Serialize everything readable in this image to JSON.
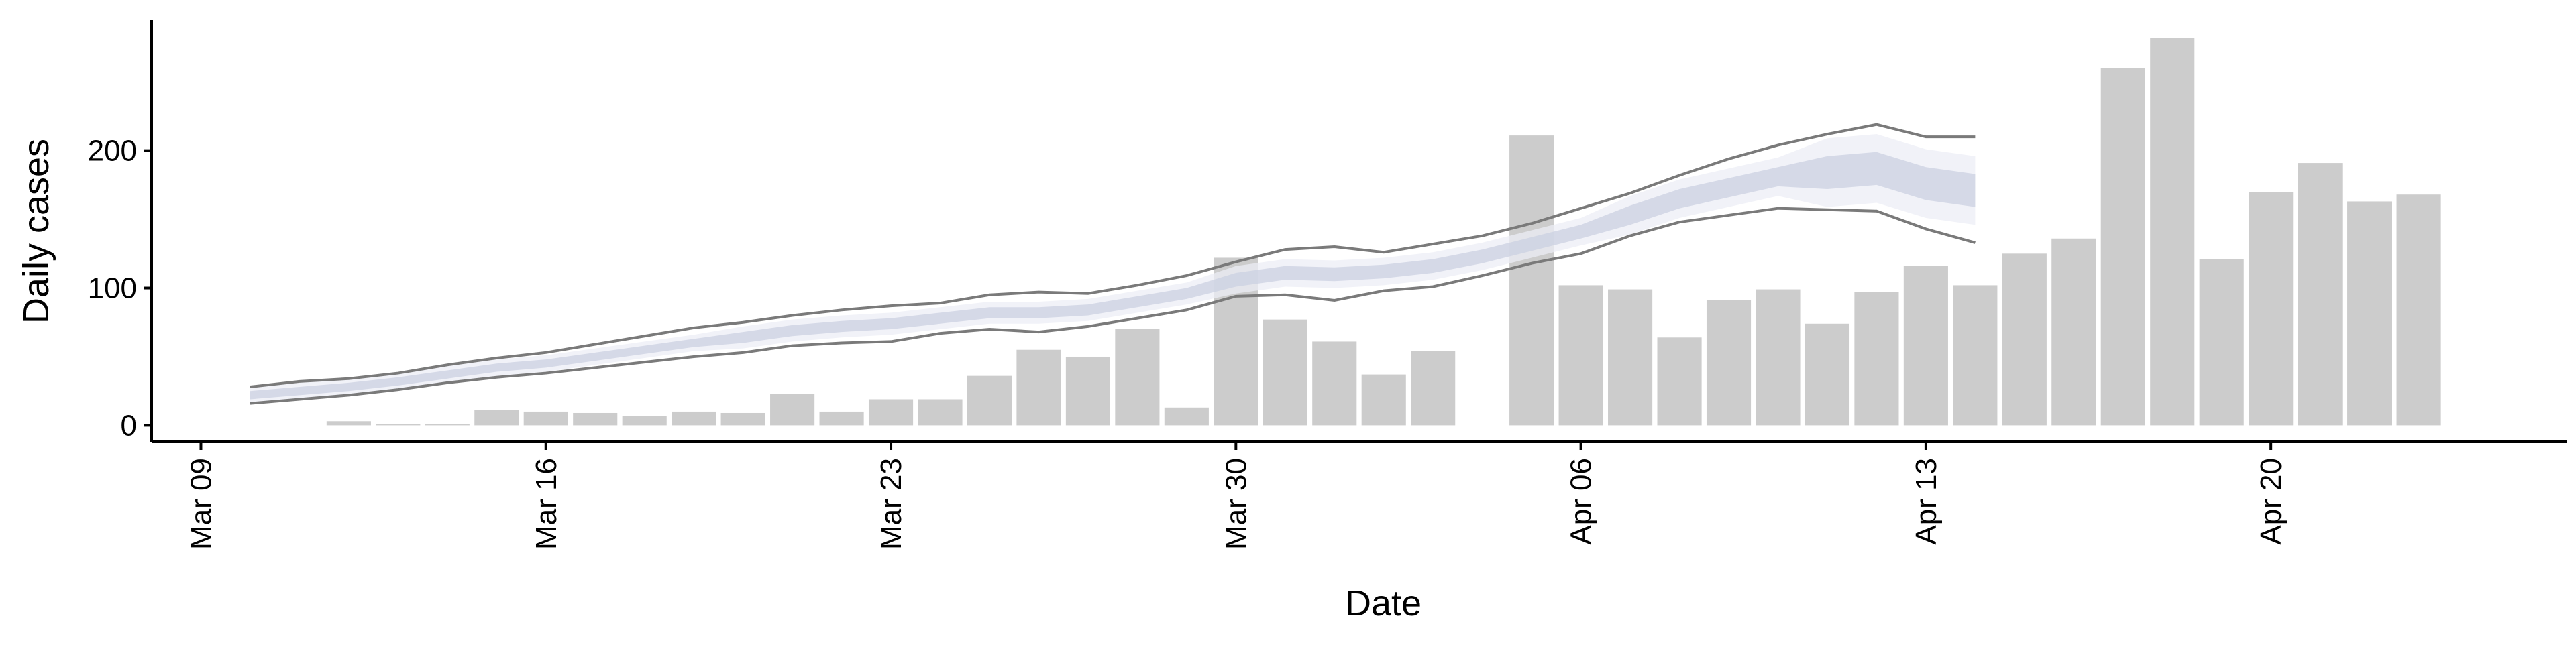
{
  "chart_data": {
    "type": "combo",
    "x_label": "Date",
    "y_label": "Daily cases",
    "x": [
      "Mar 10",
      "Mar 11",
      "Mar 12",
      "Mar 13",
      "Mar 14",
      "Mar 15",
      "Mar 16",
      "Mar 17",
      "Mar 18",
      "Mar 19",
      "Mar 20",
      "Mar 21",
      "Mar 22",
      "Mar 23",
      "Mar 24",
      "Mar 25",
      "Mar 26",
      "Mar 27",
      "Mar 28",
      "Mar 29",
      "Mar 30",
      "Mar 31",
      "Apr 01",
      "Apr 02",
      "Apr 03",
      "Apr 04",
      "Apr 05",
      "Apr 06",
      "Apr 07",
      "Apr 08",
      "Apr 09",
      "Apr 10",
      "Apr 11",
      "Apr 12",
      "Apr 13",
      "Apr 14",
      "Apr 15",
      "Apr 16",
      "Apr 17",
      "Apr 18",
      "Apr 19",
      "Apr 20",
      "Apr 21",
      "Apr 22",
      "Apr 23"
    ],
    "xlim": [
      "Mar 08",
      "Apr 26"
    ],
    "xticks": [
      "Mar 09",
      "Mar 16",
      "Mar 23",
      "Mar 30",
      "Apr 06",
      "Apr 13",
      "Apr 20"
    ],
    "ylim": [
      -12,
      295
    ],
    "yticks": [
      0,
      100,
      200
    ],
    "series": [
      {
        "type": "bar",
        "color": "#cccccc",
        "values": [
          null,
          null,
          3,
          1,
          1,
          11,
          10,
          9,
          7,
          10,
          9,
          23,
          10,
          19,
          19,
          36,
          55,
          50,
          70,
          13,
          122,
          77,
          61,
          37,
          54,
          null,
          211,
          102,
          99,
          64,
          91,
          99,
          74,
          97,
          116,
          102,
          125,
          136,
          260,
          282,
          121,
          170,
          191,
          163,
          168
        ]
      },
      {
        "type": "band",
        "color": "#eceef5",
        "lo": [
          16,
          19,
          22,
          26,
          31,
          36,
          39,
          44,
          49,
          54,
          56,
          61,
          64,
          66,
          70,
          74,
          74,
          76,
          82,
          88,
          96,
          101,
          100,
          102,
          106,
          113,
          122,
          131,
          139,
          151,
          159,
          167,
          159,
          162,
          151,
          146,
          null,
          null,
          null,
          null,
          null,
          null,
          null,
          null,
          null
        ],
        "hi": [
          28,
          31,
          34,
          38,
          43,
          48,
          51,
          56,
          61,
          66,
          72,
          77,
          80,
          82,
          86,
          90,
          90,
          92,
          98,
          104,
          116,
          121,
          120,
          122,
          126,
          133,
          142,
          151,
          167,
          179,
          187,
          195,
          209,
          212,
          201,
          196,
          null,
          null,
          null,
          null,
          null,
          null,
          null,
          null,
          null
        ]
      },
      {
        "type": "band",
        "color": "#cbd0e2",
        "lo": [
          19,
          22,
          25,
          29,
          34,
          39,
          42,
          47,
          52,
          57,
          60,
          65,
          68,
          70,
          74,
          78,
          78,
          80,
          86,
          92,
          101,
          106,
          105,
          107,
          111,
          118,
          127,
          136,
          146,
          158,
          166,
          174,
          172,
          175,
          164,
          159,
          null,
          null,
          null,
          null,
          null,
          null,
          null,
          null,
          null
        ],
        "hi": [
          25,
          28,
          31,
          35,
          40,
          45,
          48,
          53,
          58,
          63,
          68,
          73,
          76,
          78,
          82,
          86,
          86,
          88,
          94,
          100,
          111,
          116,
          115,
          117,
          121,
          128,
          137,
          146,
          160,
          172,
          180,
          188,
          196,
          199,
          188,
          183,
          null,
          null,
          null,
          null,
          null,
          null,
          null,
          null,
          null
        ]
      },
      {
        "type": "line",
        "color": "#7a7a7a",
        "values": [
          28,
          32,
          34,
          38,
          44,
          49,
          53,
          59,
          65,
          71,
          75,
          80,
          84,
          87,
          89,
          95,
          97,
          96,
          102,
          109,
          119,
          128,
          130,
          126,
          132,
          138,
          147,
          158,
          169,
          182,
          194,
          204,
          212,
          219,
          210,
          210,
          null,
          null,
          null,
          null,
          null,
          null,
          null,
          null,
          null
        ]
      },
      {
        "type": "line",
        "color": "#7a7a7a",
        "values": [
          16,
          19,
          22,
          26,
          31,
          35,
          38,
          42,
          46,
          50,
          53,
          58,
          60,
          61,
          67,
          70,
          68,
          72,
          78,
          84,
          94,
          95,
          91,
          98,
          101,
          109,
          118,
          125,
          138,
          148,
          153,
          158,
          157,
          156,
          143,
          133,
          null,
          null,
          null,
          null,
          null,
          null,
          null,
          null,
          null
        ]
      }
    ]
  }
}
